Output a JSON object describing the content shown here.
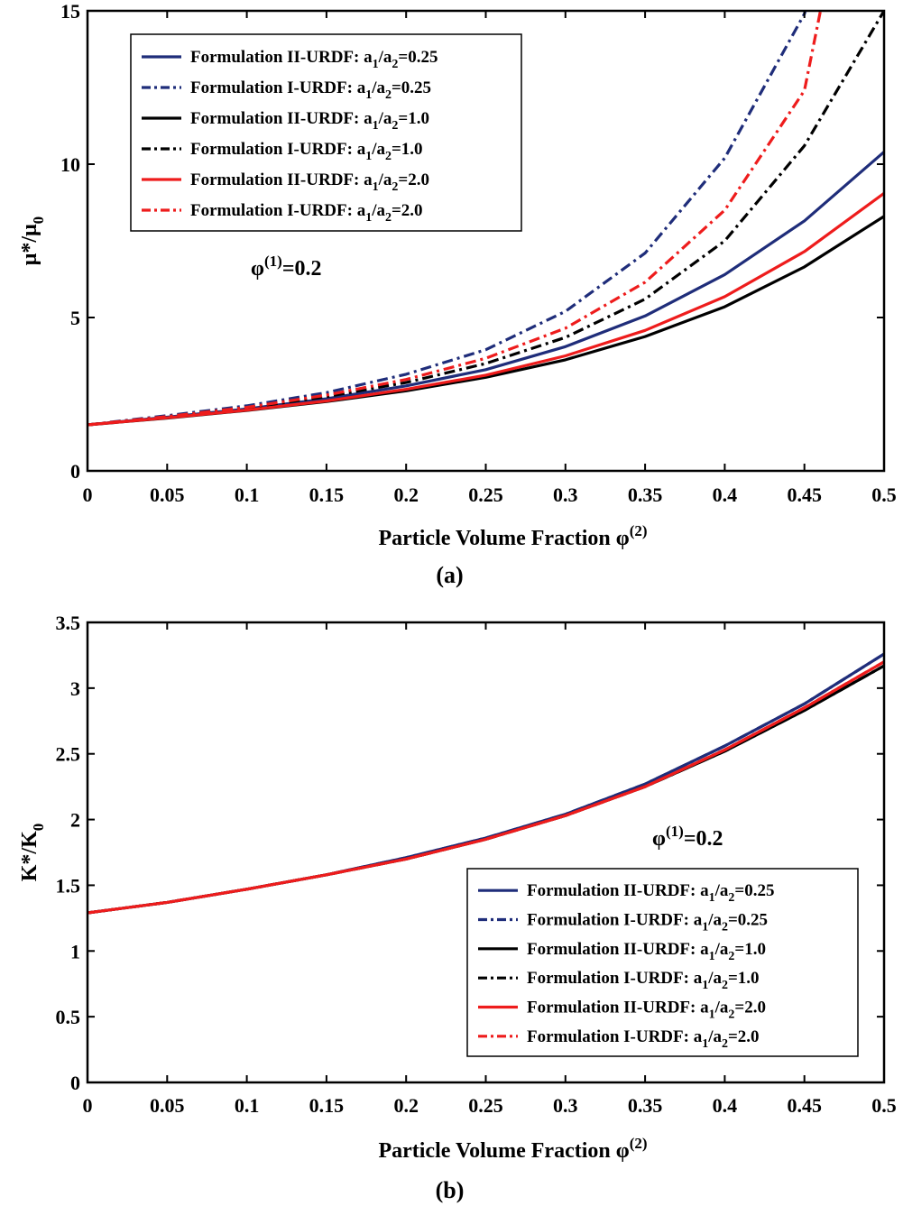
{
  "series_styles": [
    {
      "key": "II_025",
      "color": "#1f2d7a",
      "dash": "solid"
    },
    {
      "key": "I_025",
      "color": "#1f2d7a",
      "dash": "dashdot"
    },
    {
      "key": "II_10",
      "color": "#000000",
      "dash": "solid"
    },
    {
      "key": "I_10",
      "color": "#000000",
      "dash": "dashdot"
    },
    {
      "key": "II_20",
      "color": "#ee1c1c",
      "dash": "solid"
    },
    {
      "key": "I_20",
      "color": "#ee1c1c",
      "dash": "dashdot"
    }
  ],
  "chart_data": [
    {
      "type": "line",
      "panel": "a",
      "caption": "(a)",
      "xlabel": "Particle Volume Fraction φ",
      "xlabel_sup": "(2)",
      "ylabel": "μ*/μ",
      "ylabel_sub": "0",
      "xlim": [
        0,
        0.5
      ],
      "ylim": [
        0,
        15
      ],
      "xticks": [
        "0",
        "0.05",
        "0.1",
        "0.15",
        "0.2",
        "0.25",
        "0.3",
        "0.35",
        "0.4",
        "0.45",
        "0.5"
      ],
      "yticks": [
        "0",
        "5",
        "10",
        "15"
      ],
      "annotation": {
        "text": "φ",
        "sup": "(1)",
        "rest": "=0.2"
      },
      "legend_position": "top-left",
      "legend": [
        {
          "pre": "Formulation II-URDF: a",
          "s1": "1",
          "mid": "/a",
          "s2": "2",
          "post": "=0.25"
        },
        {
          "pre": "Formulation I-URDF: a",
          "s1": "1",
          "mid": "/a",
          "s2": "2",
          "post": "=0.25"
        },
        {
          "pre": "Formulation II-URDF: a",
          "s1": "1",
          "mid": "/a",
          "s2": "2",
          "post": "=1.0"
        },
        {
          "pre": "Formulation I-URDF: a",
          "s1": "1",
          "mid": "/a",
          "s2": "2",
          "post": "=1.0"
        },
        {
          "pre": "Formulation II-URDF: a",
          "s1": "1",
          "mid": "/a",
          "s2": "2",
          "post": "=2.0"
        },
        {
          "pre": "Formulation I-URDF: a",
          "s1": "1",
          "mid": "/a",
          "s2": "2",
          "post": "=2.0"
        }
      ],
      "x": [
        0,
        0.05,
        0.1,
        0.15,
        0.2,
        0.25,
        0.3,
        0.35,
        0.4,
        0.45,
        0.5
      ],
      "series": [
        {
          "name": "Formulation II-URDF: a1/a2=0.25",
          "values": [
            1.5,
            1.75,
            2.02,
            2.35,
            2.77,
            3.3,
            4.05,
            5.05,
            6.4,
            8.15,
            10.4
          ]
        },
        {
          "name": "Formulation I-URDF: a1/a2=0.25",
          "values": [
            1.5,
            1.8,
            2.12,
            2.55,
            3.15,
            3.95,
            5.2,
            7.1,
            10.2,
            14.9,
            null
          ]
        },
        {
          "name": "Formulation II-URDF: a1/a2=1.0",
          "values": [
            1.5,
            1.72,
            1.97,
            2.26,
            2.61,
            3.05,
            3.62,
            4.38,
            5.35,
            6.65,
            8.3
          ]
        },
        {
          "name": "Formulation I-URDF: a1/a2=1.0",
          "values": [
            1.5,
            1.76,
            2.05,
            2.42,
            2.88,
            3.5,
            4.35,
            5.6,
            7.5,
            10.6,
            15.0
          ]
        },
        {
          "name": "Formulation II-URDF: a1/a2=2.0",
          "values": [
            1.5,
            1.73,
            1.98,
            2.28,
            2.66,
            3.12,
            3.75,
            4.58,
            5.68,
            7.15,
            9.05
          ]
        },
        {
          "name": "Formulation I-URDF: a1/a2=2.0",
          "values": [
            1.5,
            1.77,
            2.07,
            2.47,
            2.98,
            3.67,
            4.65,
            6.15,
            8.5,
            12.4,
            null
          ]
        }
      ]
    },
    {
      "type": "line",
      "panel": "b",
      "caption": "(b)",
      "xlabel": "Particle Volume Fraction φ",
      "xlabel_sup": "(2)",
      "ylabel": "K*/K",
      "ylabel_sub": "0",
      "xlim": [
        0,
        0.5
      ],
      "ylim": [
        0,
        3.5
      ],
      "xticks": [
        "0",
        "0.05",
        "0.1",
        "0.15",
        "0.2",
        "0.25",
        "0.3",
        "0.35",
        "0.4",
        "0.45",
        "0.5"
      ],
      "yticks": [
        "0",
        "0.5",
        "1",
        "1.5",
        "2",
        "2.5",
        "3",
        "3.5"
      ],
      "annotation": {
        "text": "φ",
        "sup": "(1)",
        "rest": "=0.2"
      },
      "legend_position": "bottom-right",
      "legend": [
        {
          "pre": "Formulation II-URDF: a",
          "s1": "1",
          "mid": "/a",
          "s2": "2",
          "post": "=0.25"
        },
        {
          "pre": "Formulation I-URDF: a",
          "s1": "1",
          "mid": "/a",
          "s2": "2",
          "post": "=0.25"
        },
        {
          "pre": "Formulation II-URDF: a",
          "s1": "1",
          "mid": "/a",
          "s2": "2",
          "post": "=1.0"
        },
        {
          "pre": "Formulation I-URDF: a",
          "s1": "1",
          "mid": "/a",
          "s2": "2",
          "post": "=1.0"
        },
        {
          "pre": "Formulation II-URDF: a",
          "s1": "1",
          "mid": "/a",
          "s2": "2",
          "post": "=2.0"
        },
        {
          "pre": "Formulation I-URDF: a",
          "s1": "1",
          "mid": "/a",
          "s2": "2",
          "post": "=2.0"
        }
      ],
      "x": [
        0,
        0.05,
        0.1,
        0.15,
        0.2,
        0.25,
        0.3,
        0.35,
        0.4,
        0.45,
        0.5
      ],
      "series": [
        {
          "name": "Formulation II-URDF: a1/a2=0.25",
          "values": [
            1.29,
            1.37,
            1.47,
            1.58,
            1.71,
            1.86,
            2.04,
            2.27,
            2.56,
            2.88,
            3.26
          ]
        },
        {
          "name": "Formulation I-URDF: a1/a2=0.25",
          "values": [
            1.29,
            1.37,
            1.47,
            1.58,
            1.71,
            1.86,
            2.04,
            2.27,
            2.56,
            2.88,
            3.26
          ]
        },
        {
          "name": "Formulation II-URDF: a1/a2=1.0",
          "values": [
            1.29,
            1.37,
            1.47,
            1.58,
            1.7,
            1.85,
            2.03,
            2.25,
            2.52,
            2.83,
            3.17
          ]
        },
        {
          "name": "Formulation I-URDF: a1/a2=1.0",
          "values": [
            1.29,
            1.37,
            1.47,
            1.58,
            1.7,
            1.85,
            2.03,
            2.25,
            2.52,
            2.83,
            3.17
          ]
        },
        {
          "name": "Formulation II-URDF: a1/a2=2.0",
          "values": [
            1.29,
            1.37,
            1.47,
            1.58,
            1.7,
            1.85,
            2.03,
            2.25,
            2.53,
            2.85,
            3.2
          ]
        },
        {
          "name": "Formulation I-URDF: a1/a2=2.0",
          "values": [
            1.29,
            1.37,
            1.47,
            1.58,
            1.7,
            1.85,
            2.03,
            2.25,
            2.53,
            2.85,
            3.2
          ]
        }
      ]
    }
  ]
}
